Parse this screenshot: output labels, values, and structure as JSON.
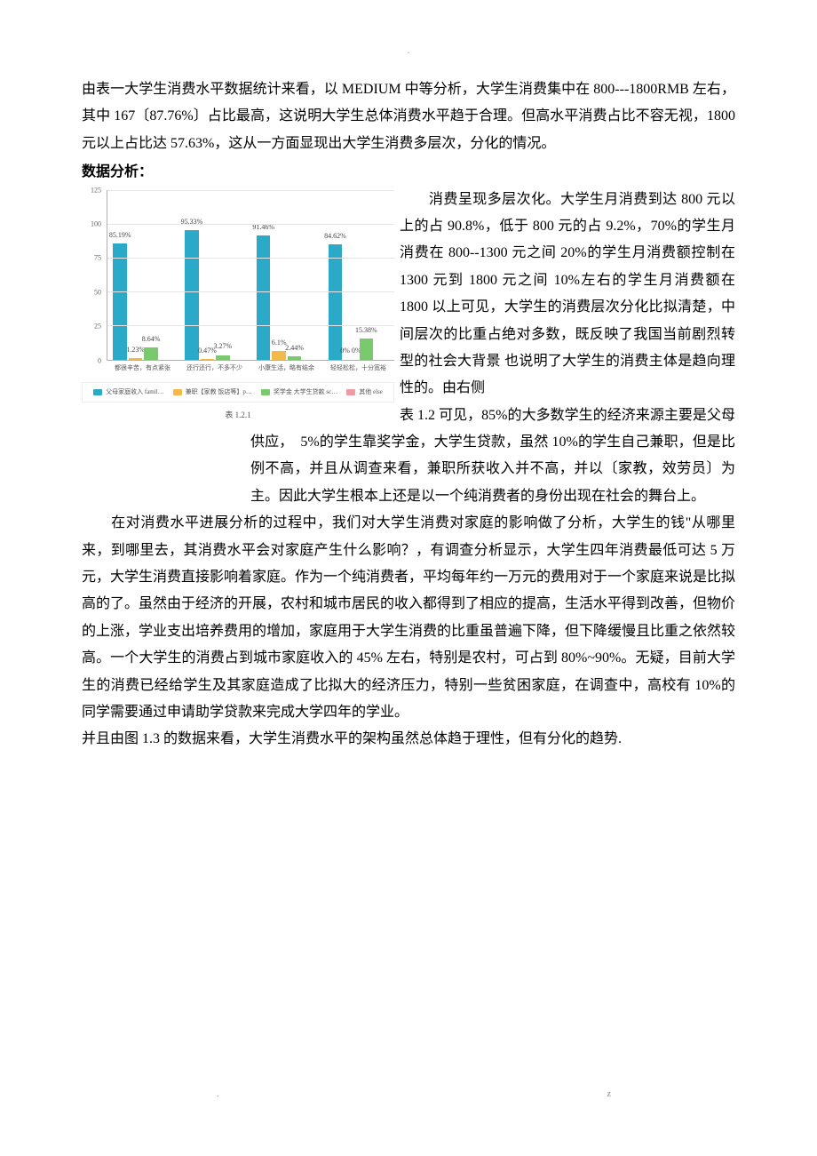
{
  "para1": "由表一大学生消费水平数据统计来看，以 MEDIUM 中等分析，大学生消费集中在 800---1800RMB 左右，其中 167〔87.76%〕占比最高，这说明大学生总体消费水平趋于合理。但高水平消费占比不容无视，1800 元以上占比达 57.63%，这从一方面显现出大学生消费多层次，分化的情况。",
  "section_title": "数据分析：",
  "right_para": "　　消费呈现多层次化。大学生月消费到达 800 元以上的占 90.8%，低于 800 元的占 9.2%，70%的学生月消费在 800--1300 元之间 20%的学生月消费额控制在 1300 元到 1800 元之间 10%左右的学生月消费额在 1800 以上可见，大学生的消费层次分化比拟清楚，中间层次的比重占绝对多数，既反映了我国当前剧烈转型的社会大背景 也说明了大学生的消费主体是趋向理性的。由右侧",
  "mid_para": "表 1.2 可见，85%的大多数学生的经济来源主要是父母供应，　5%的学生靠奖学金，大学生贷款，虽然 10%的学生自己兼职，但是比例不高，并且从调查来看，兼职所获收入并不高，并以〔家教，效劳员〕为主。因此大学生根本上还是以一个纯消费者的身份出现在社会的舞台上。",
  "para2": "　　在对消费水平进展分析的过程中，我们对大学生消费对家庭的影响做了分析，大学生的钱\"从哪里来，到哪里去，其消费水平会对家庭产生什么影响？，有调查分析显示，大学生四年消费最低可达 5 万元，大学生消费直接影响着家庭。作为一个纯消费者，平均每年约一万元的费用对于一个家庭来说是比拟高的了。虽然由于经济的开展，农村和城市居民的收入都得到了相应的提高，生活水平得到改善，但物价的上涨，学业支出培养费用的增加，家庭用于大学生消费的比重虽普遍下降，但下降缓慢且比重之依然较高。一个大学生的消费占到城市家庭收入的 45% 左右，特别是农村，可占到 80%~90%。无疑，目前大学生的消费已经给学生及其家庭造成了比拟大的经济压力，特别一些贫困家庭，在调查中，高校有 10%的同学需要通过申请助学贷款来完成大学四年的学业。",
  "para3": "并且由图 1.3 的数据来看，大学生消费水平的架构虽然总体趋于理性，但有分化的趋势.",
  "footer_dot": ".",
  "footer_z": "z",
  "chart": {
    "type": "bar",
    "ylim": [
      0,
      125
    ],
    "yticks": [
      0,
      25,
      50,
      75,
      100,
      125
    ],
    "groups": [
      {
        "label": "都很辛苦，有点紧张",
        "values": [
          85.19,
          1.23,
          8.64,
          0
        ]
      },
      {
        "label": "还行还行，不多不少",
        "values": [
          95.33,
          0.47,
          3.27,
          0
        ]
      },
      {
        "label": "小康生活，略有结余",
        "values": [
          91.46,
          6.1,
          2.44,
          0
        ]
      },
      {
        "label": "轻轻松松，十分宽裕",
        "values": [
          84.62,
          0,
          15.38,
          0
        ]
      }
    ],
    "value_labels": [
      [
        "85.19%",
        "1.23%",
        "8.64%",
        ""
      ],
      [
        "95.33%",
        "0.47%",
        "3.27%",
        ""
      ],
      [
        "91.46%",
        "6.1%",
        "2.44%",
        ""
      ],
      [
        "84.62%",
        "0% 0%",
        "15.38%",
        ""
      ]
    ],
    "series": [
      {
        "name": "父母家庭收入 famil…",
        "color": "#2aa9c9"
      },
      {
        "name": "兼职【家教 饭店等】p…",
        "color": "#f5b94a"
      },
      {
        "name": "奖学金 大学生贷款 sc…",
        "color": "#7bc96f"
      },
      {
        "name": "其他 else",
        "color": "#f09ba4"
      }
    ],
    "grid_color": "#e5e5e5",
    "axis_color": "#b0b0b0",
    "label_fontsize": 8,
    "caption": "表 1.2.1"
  }
}
